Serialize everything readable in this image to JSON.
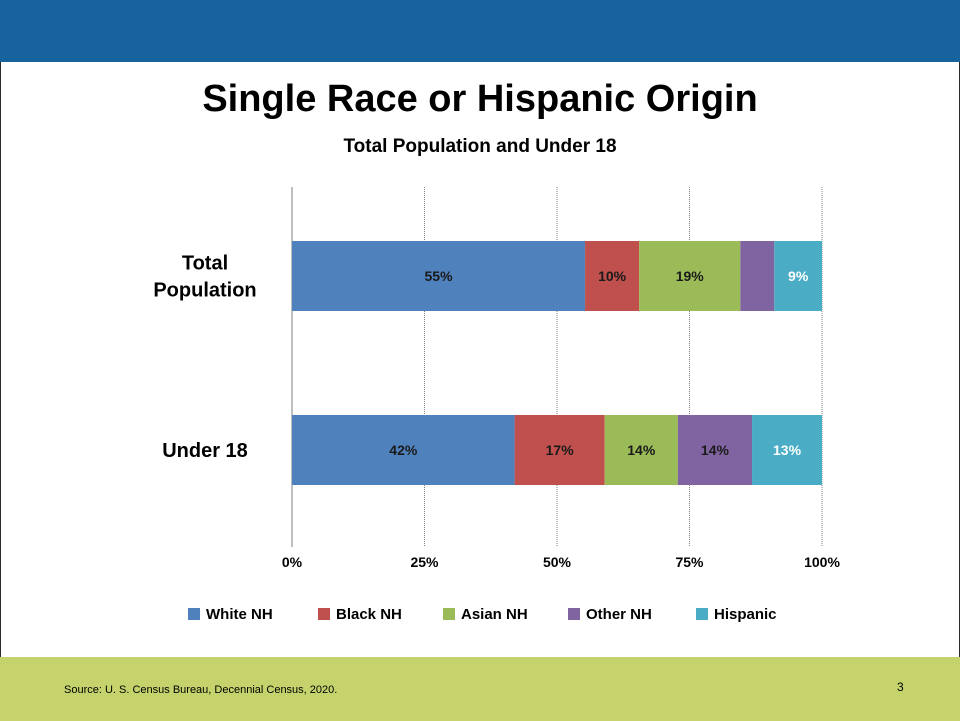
{
  "slide": {
    "title": "Single Race or Hispanic Origin",
    "subtitle": "Total Population and Under 18",
    "source": "Source: U. S. Census Bureau, Decennial Census, 2020.",
    "page_number": "3",
    "colors": {
      "header_band": "#17639e",
      "footer_band": "#c6d36c"
    }
  },
  "chart_data": {
    "type": "bar",
    "orientation": "horizontal",
    "stacked": true,
    "percent_stacked": true,
    "categories": [
      [
        "Total",
        "Population"
      ],
      [
        "Under 18"
      ]
    ],
    "series": [
      {
        "name": "White NH",
        "color": "#4f81bd",
        "values": [
          55.3,
          42.0
        ],
        "labels": [
          "55%",
          "42%"
        ],
        "label_color": "#1a1a1a"
      },
      {
        "name": "Black NH",
        "color": "#c0504d",
        "values": [
          10.2,
          17.0
        ],
        "labels": [
          "10%",
          "17%"
        ],
        "label_color": "#1a1a1a"
      },
      {
        "name": "Asian NH",
        "color": "#9bbb59",
        "values": [
          19.1,
          13.8
        ],
        "labels": [
          "19%",
          "14%"
        ],
        "label_color": "#1a1a1a"
      },
      {
        "name": "Other NH",
        "color": "#8064a2",
        "values": [
          6.4,
          14.0
        ],
        "labels": [
          "",
          "14%"
        ],
        "label_color": "#1a1a1a"
      },
      {
        "name": "Hispanic",
        "color": "#4bacc6",
        "values": [
          9.0,
          13.2
        ],
        "labels": [
          "9%",
          "13%"
        ],
        "label_color": "#ffffff"
      }
    ],
    "xlim": [
      0,
      100
    ],
    "xticks": [
      0,
      25,
      50,
      75,
      100
    ],
    "xtick_labels": [
      "0%",
      "25%",
      "50%",
      "75%",
      "100%"
    ],
    "gridlines": "vertical",
    "legend_position": "bottom"
  }
}
